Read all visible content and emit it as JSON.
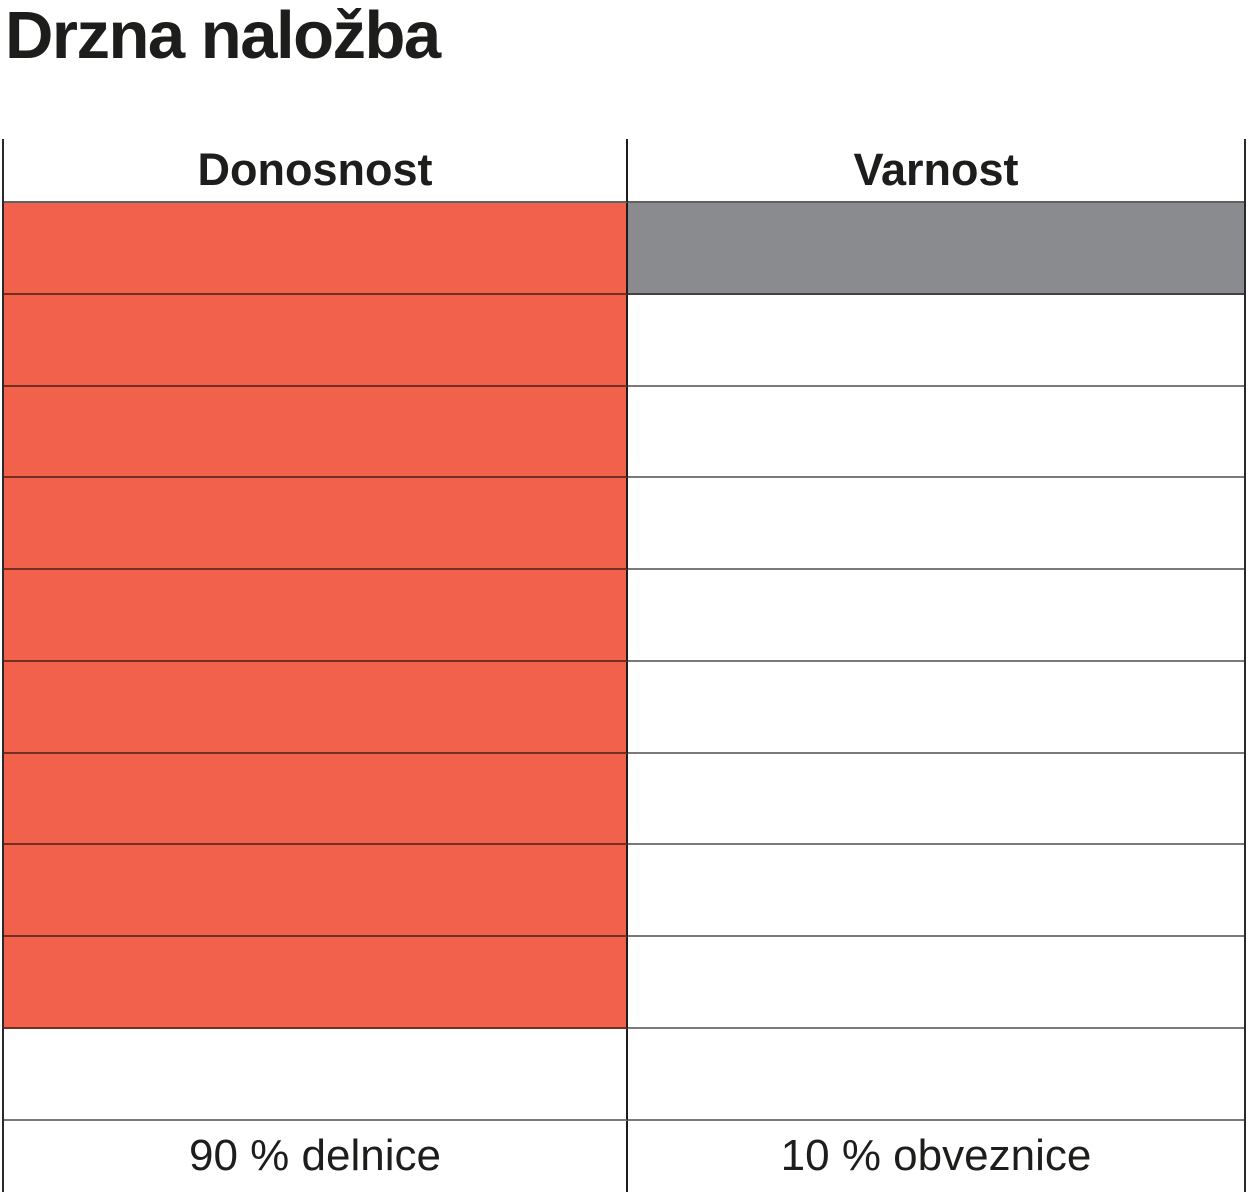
{
  "page": {
    "title": "Drzna naložba"
  },
  "chart_data": {
    "type": "table",
    "title": "Drzna naložba",
    "layout": {
      "rows": 10,
      "fill_from": "top",
      "grid_lines": true,
      "legend_position": "none"
    },
    "columns": [
      {
        "header": "Donosnost",
        "value": 9,
        "max": 10,
        "fill_color": "#f2614b",
        "footer": "90 % delnice"
      },
      {
        "header": "Varnost",
        "value": 1,
        "max": 10,
        "fill_color": "#8a8b8e",
        "footer": "10 % obveznice"
      }
    ],
    "colors": {
      "accent_orange": "#f2614b",
      "neutral_gray": "#8a8b8e",
      "empty_cell": "#ffffff",
      "border": "#1c1c1c",
      "text": "#1d1d1b",
      "background": "#ffffff"
    }
  }
}
